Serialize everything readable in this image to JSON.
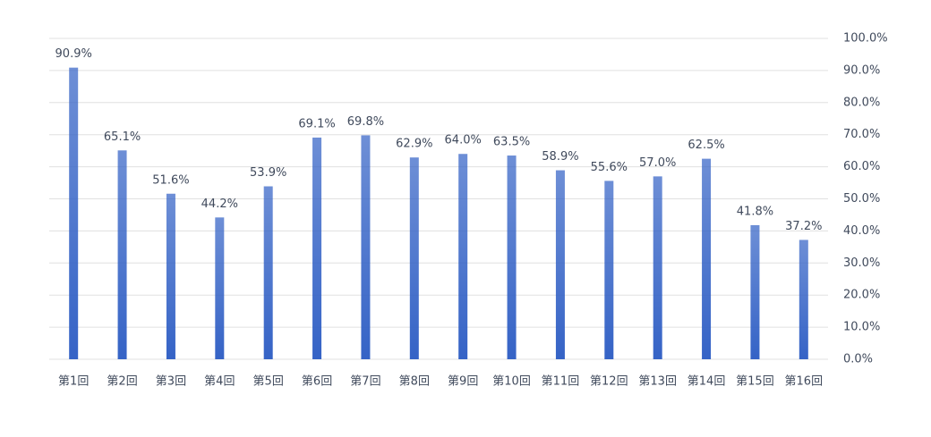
{
  "chart_data": {
    "type": "bar",
    "categories": [
      "第1回",
      "第2回",
      "第3回",
      "第4回",
      "第5回",
      "第6回",
      "第7回",
      "第8回",
      "第9回",
      "第10回",
      "第11回",
      "第12回",
      "第13回",
      "第14回",
      "第15回",
      "第16回"
    ],
    "values": [
      90.9,
      65.1,
      51.6,
      44.2,
      53.9,
      69.1,
      69.8,
      62.9,
      64.0,
      63.5,
      58.9,
      55.6,
      57.0,
      62.5,
      41.8,
      37.2
    ],
    "value_labels": [
      "90.9%",
      "65.1%",
      "51.6%",
      "44.2%",
      "53.9%",
      "69.1%",
      "69.8%",
      "62.9%",
      "64.0%",
      "63.5%",
      "58.9%",
      "55.6%",
      "57.0%",
      "62.5%",
      "41.8%",
      "37.2%"
    ],
    "color": "#3563c6",
    "ylim": [
      0,
      100
    ],
    "yticks": [
      {
        "value": 0,
        "label": "0.0%"
      },
      {
        "value": 10,
        "label": "10.0%"
      },
      {
        "value": 20,
        "label": "20.0%"
      },
      {
        "value": 30,
        "label": "30.0%"
      },
      {
        "value": 40,
        "label": "40.0%"
      },
      {
        "value": 50,
        "label": "50.0%"
      },
      {
        "value": 60,
        "label": "60.0%"
      },
      {
        "value": 70,
        "label": "70.0%"
      },
      {
        "value": 80,
        "label": "80.0%"
      },
      {
        "value": 90,
        "label": "90.0%"
      },
      {
        "value": 100,
        "label": "100.0%"
      }
    ],
    "grid": true,
    "y_axis_side": "right"
  }
}
